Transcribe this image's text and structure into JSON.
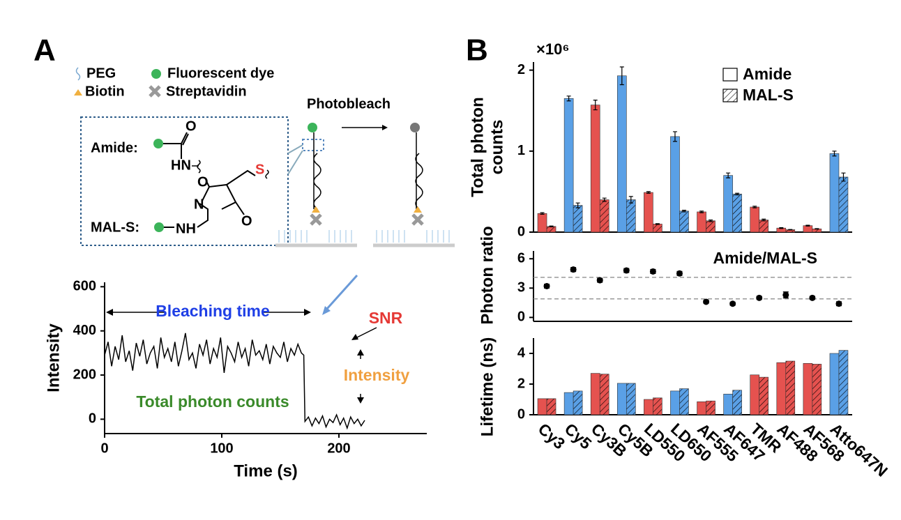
{
  "diagram": {
    "panel_labels": [
      "A",
      "B"
    ],
    "legend": [
      "PEG",
      "Fluorescent dye",
      "Biotin",
      "Streptavidin"
    ],
    "photobleach": "Photobleach",
    "linkers": [
      {
        "name": "Amide:",
        "atoms": [
          "O",
          "HN"
        ]
      },
      {
        "name": "MAL-S:",
        "atoms": [
          "NH",
          "N",
          "O",
          "O",
          "S"
        ]
      }
    ]
  },
  "chart_data": [
    {
      "type": "line",
      "xlabel": "Time (s)",
      "ylabel": "Intensity",
      "color": "#000000",
      "x": [
        0,
        3,
        6,
        9,
        12,
        15,
        18,
        21,
        24,
        27,
        30,
        33,
        36,
        39,
        42,
        45,
        48,
        51,
        54,
        57,
        60,
        63,
        66,
        69,
        72,
        75,
        78,
        81,
        84,
        87,
        90,
        93,
        96,
        99,
        102,
        105,
        108,
        111,
        114,
        117,
        120,
        123,
        126,
        129,
        132,
        135,
        138,
        141,
        144,
        147,
        150,
        153,
        156,
        159,
        162,
        165,
        168,
        170,
        171,
        174,
        177,
        180,
        183,
        186,
        189,
        192,
        195,
        198,
        201,
        204,
        207,
        210,
        213,
        216,
        219,
        222
      ],
      "values": [
        290,
        350,
        240,
        330,
        270,
        380,
        260,
        310,
        220,
        345,
        285,
        360,
        250,
        300,
        330,
        230,
        370,
        280,
        320,
        260,
        350,
        240,
        310,
        390,
        270,
        300,
        230,
        340,
        290,
        360,
        250,
        320,
        280,
        370,
        210,
        330,
        300,
        260,
        350,
        280,
        320,
        240,
        360,
        290,
        310,
        270,
        340,
        250,
        330,
        300,
        280,
        350,
        260,
        320,
        290,
        340,
        300,
        290,
        -10,
        10,
        -30,
        5,
        -20,
        15,
        -35,
        0,
        -15,
        20,
        -25,
        5,
        -40,
        10,
        -20,
        0,
        -30,
        -5
      ],
      "xlim": [
        0,
        275
      ],
      "xticks": [
        0,
        100,
        200
      ],
      "ylim": [
        -65,
        620
      ],
      "yticks": [
        0,
        200,
        400,
        600
      ],
      "annotations": [
        {
          "text": "Bleaching time",
          "color": "#1f3fe6"
        },
        {
          "text": "SNR",
          "color": "#e53935"
        },
        {
          "text": "Intensity",
          "color": "#f0a040"
        },
        {
          "text": "Total photon counts",
          "color": "#3a8a2a"
        }
      ]
    },
    {
      "type": "bar",
      "ylabel": [
        "Total photon",
        "counts"
      ],
      "y_multiplier_label": "×10⁶",
      "ylim": [
        0,
        2.1
      ],
      "yticks": [
        0,
        1,
        2
      ],
      "legend": "upper right",
      "colors": [
        "#e5524f",
        "#5aa0e6",
        "#e5524f",
        "#5aa0e6",
        "#e5524f",
        "#5aa0e6",
        "#e5524f",
        "#5aa0e6",
        "#e5524f",
        "#e5524f",
        "#e5524f",
        "#5aa0e6"
      ],
      "series": [
        {
          "name": "Amide",
          "hatch": false,
          "values": [
            0.23,
            1.65,
            1.57,
            1.93,
            0.49,
            1.18,
            0.25,
            0.7,
            0.31,
            0.05,
            0.08,
            0.97
          ],
          "errors": [
            0.01,
            0.03,
            0.06,
            0.11,
            0.01,
            0.06,
            0.01,
            0.03,
            0.01,
            0.005,
            0.005,
            0.03
          ]
        },
        {
          "name": "MAL-S",
          "hatch": true,
          "values": [
            0.07,
            0.33,
            0.4,
            0.4,
            0.1,
            0.26,
            0.14,
            0.47,
            0.15,
            0.03,
            0.04,
            0.68
          ],
          "errors": [
            0.005,
            0.03,
            0.02,
            0.04,
            0.005,
            0.01,
            0.01,
            0.01,
            0.01,
            0.003,
            0.003,
            0.05
          ]
        }
      ]
    },
    {
      "type": "scatter",
      "ylabel": "Photon ratio",
      "annotation": "Amide/MAL-S",
      "color": "#000000",
      "ylim": [
        -0.4,
        6.8
      ],
      "yticks": [
        0,
        3,
        6
      ],
      "reference_lines": [
        4.1,
        1.9
      ],
      "values": [
        3.2,
        4.9,
        3.8,
        4.8,
        4.7,
        4.5,
        1.6,
        1.4,
        2.0,
        2.3,
        2.0,
        1.4
      ],
      "errors": [
        0.2,
        0.2,
        0.2,
        0.2,
        0.2,
        0.2,
        0.15,
        0.15,
        0.15,
        0.3,
        0.15,
        0.2
      ]
    },
    {
      "type": "bar",
      "ylabel": "Lifetime (ns)",
      "ylim": [
        0,
        5
      ],
      "yticks": [
        0,
        2,
        4
      ],
      "categories": [
        "Cy3",
        "Cy5",
        "Cy3B",
        "Cy5B",
        "LD550",
        "LD650",
        "AF555",
        "AF647",
        "TMR",
        "AF488",
        "AF568",
        "Atto647N"
      ],
      "colors": [
        "#e5524f",
        "#5aa0e6",
        "#e5524f",
        "#5aa0e6",
        "#e5524f",
        "#5aa0e6",
        "#e5524f",
        "#5aa0e6",
        "#e5524f",
        "#e5524f",
        "#e5524f",
        "#5aa0e6"
      ],
      "series": [
        {
          "name": "Amide",
          "hatch": false,
          "values": [
            1.05,
            1.45,
            2.7,
            2.05,
            1.0,
            1.55,
            0.85,
            1.35,
            2.6,
            3.4,
            3.35,
            4.0
          ]
        },
        {
          "name": "MAL-S",
          "hatch": true,
          "values": [
            1.05,
            1.55,
            2.65,
            2.05,
            1.1,
            1.7,
            0.9,
            1.6,
            2.45,
            3.5,
            3.3,
            4.2
          ]
        }
      ]
    }
  ]
}
